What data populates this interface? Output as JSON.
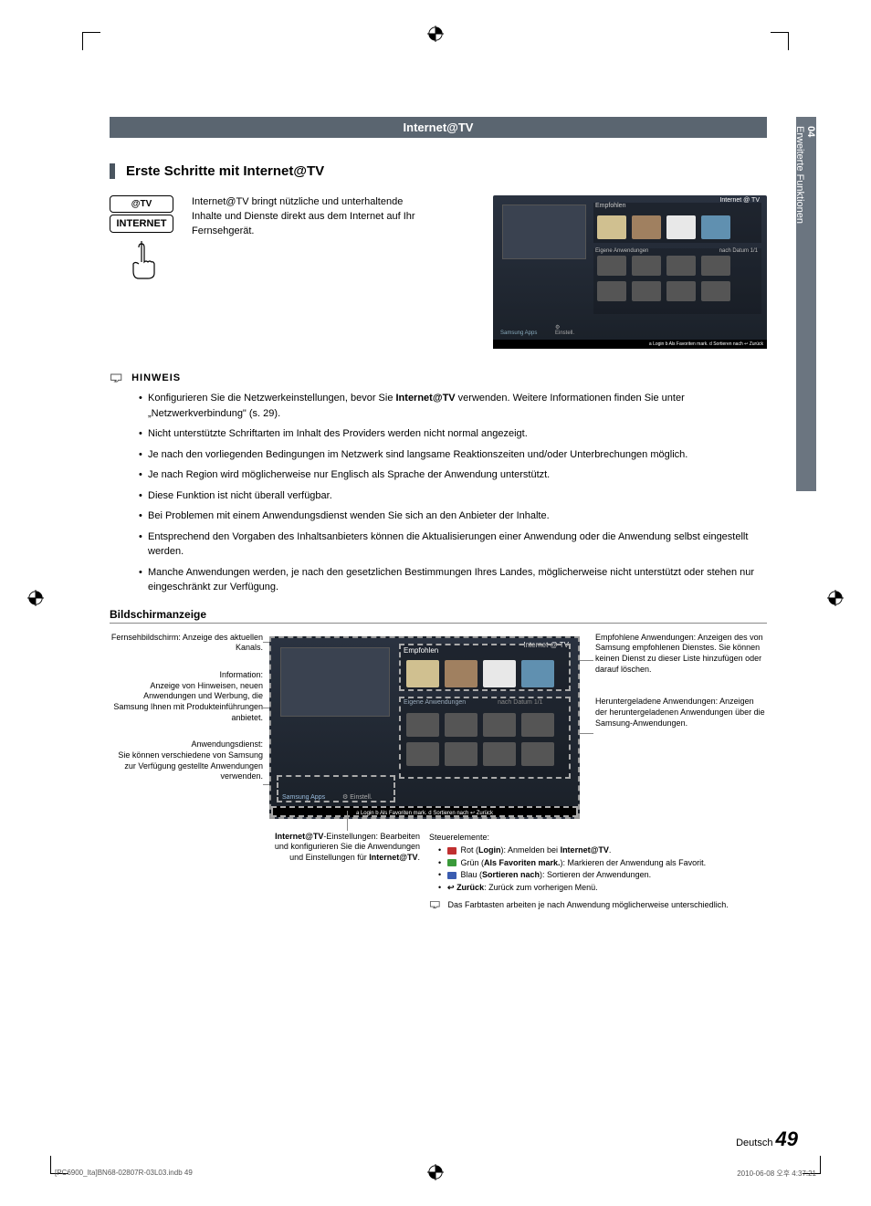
{
  "header": {
    "title": "Internet@TV"
  },
  "sidetab": {
    "num": "04",
    "label": "Erweiterte Funktionen"
  },
  "section": {
    "title": "Erste Schritte mit Internet@TV"
  },
  "remote": {
    "topLabel": "@TV",
    "mainLabel": "INTERNET"
  },
  "intro": {
    "text": "Internet@TV bringt nützliche und unterhaltende Inhalte und Dienste direkt aus dem Internet auf Ihr Fernsehgerät."
  },
  "tvshot": {
    "brand": "Internet @ TV",
    "empfohlen": "Empfohlen",
    "eigene": "Eigene Anwendungen",
    "nachDatum": "nach Datum   1/1",
    "samsungApps": "Samsung Apps",
    "einstell": "Einstell.",
    "footer": "a Login    b Als Favoriten mark.    d Sortieren nach    ↩ Zurück"
  },
  "hinweis": {
    "label": "HINWEIS",
    "items": [
      "Konfigurieren Sie die Netzwerkeinstellungen, bevor Sie <b>Internet@TV</b> verwenden. Weitere Informationen finden Sie unter „Netzwerkverbindung\" (s. 29).",
      "Nicht unterstützte Schriftarten im Inhalt des Providers werden nicht normal angezeigt.",
      "Je nach den vorliegenden Bedingungen im Netzwerk sind langsame Reaktionszeiten und/oder Unterbrechungen möglich.",
      "Je nach Region wird möglicherweise nur Englisch als Sprache der Anwendung unterstützt.",
      "Diese Funktion ist nicht überall verfügbar.",
      "Bei Problemen mit einem Anwendungsdienst wenden Sie sich an den Anbieter der Inhalte.",
      "Entsprechend den Vorgaben des Inhaltsanbieters können die Aktualisierungen einer Anwendung oder die Anwendung selbst eingestellt werden.",
      "Manche Anwendungen werden, je nach den gesetzlichen Bestimmungen Ihres Landes, möglicherweise nicht unterstützt oder stehen nur eingeschränkt zur Verfügung."
    ]
  },
  "bild": {
    "head": "Bildschirmanzeige"
  },
  "callouts": {
    "left1": "Fernsehbildschirm: Anzeige des aktuellen Kanals.",
    "left2": "Information:\nAnzeige von Hinweisen, neuen Anwendungen und Werbung, die Samsung Ihnen mit Produkteinführungen anbietet.",
    "left3": "Anwendungsdienst:\nSie können verschiedene von Samsung zur Verfügung gestellte Anwendungen verwenden.",
    "center": "<b>Internet@TV</b>-Einstellungen: Bearbeiten und konfigurieren Sie die Anwendungen und Einstellungen für <b>Internet@TV</b>.",
    "right1": "Empfohlene Anwendungen: Anzeigen des von Samsung empfohlenen Dienstes. Sie können keinen Dienst zu dieser Liste hinzufügen oder darauf löschen.",
    "right2": "Heruntergeladene Anwendungen: Anzeigen der heruntergeladenen Anwendungen über die Samsung-Anwendungen."
  },
  "controls": {
    "head": "Steuerelemente:",
    "items": [
      {
        "color": "#c03030",
        "key": "a",
        "bold": "Login",
        "rest": "): Anmelden bei",
        "bold2": "Internet@TV",
        "suffix": "."
      },
      {
        "color": "#3a9a3a",
        "key": "b",
        "bold": "Als Favoriten mark.",
        "rest": "): Markieren der Anwendung als Favorit.",
        "bold2": "",
        "suffix": ""
      },
      {
        "color": "#3a5cb0",
        "key": "d",
        "bold": "Sortieren nach",
        "rest": "): Sortieren der Anwendungen.",
        "bold2": "",
        "suffix": ""
      },
      {
        "color": "",
        "key": "↩",
        "bold": "Zurück",
        "rest": ": Zurück zum vorherigen Menü.",
        "bold2": "",
        "suffix": ""
      }
    ],
    "note": "Das Farbtasten arbeiten je nach Anwendung möglicherweise unterschiedlich."
  },
  "pageNum": {
    "lang": "Deutsch",
    "num": "49"
  },
  "footer": {
    "left": "[PC6900_Ita]BN68-02807R-03L03.indb   49",
    "right": "2010-06-08   오후 4:37:21"
  }
}
